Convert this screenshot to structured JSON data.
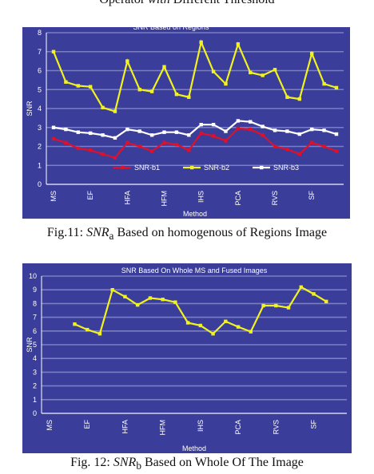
{
  "top_caption": {
    "pre": "Operator ",
    "italic": "with",
    "post": " Different Threshold"
  },
  "captions": {
    "fig11": {
      "pre": "Fig.11: ",
      "sym": "SNR",
      "sub": "a",
      "post": " Based on homogenous of Regions Image"
    },
    "fig12": {
      "pre": "Fig. 12: ",
      "sym": "SNR",
      "sub": "b",
      "post": " Based on Whole Of The  Image"
    }
  },
  "colors": {
    "background": "#3a3d99",
    "grid": "#7a7fc4",
    "text": "#ffffff",
    "snr_b1": "#e0102a",
    "snr_b2": "#f2f21e",
    "snr_b3": "#ffffff"
  },
  "chart_data": [
    {
      "type": "line",
      "title": "SNR Based on Regions",
      "xlabel": "Method",
      "ylabel": "SNR",
      "ylim": [
        0,
        8
      ],
      "yticks": [
        "0",
        "1",
        "2",
        "3",
        "4",
        "5",
        "6",
        "7",
        "8"
      ],
      "grid": true,
      "legend": "bottom",
      "x_labels": [
        "MS",
        "EF",
        "HFA",
        "HFM",
        "IHS",
        "PCA",
        "RVS",
        "SF"
      ],
      "x_label_positions": [
        0,
        3,
        6,
        9,
        12,
        15,
        18,
        21
      ],
      "n_points": 24,
      "series": [
        {
          "name": "SNR-b1",
          "color_key": "snr_b1",
          "values": [
            2.4,
            2.2,
            1.9,
            1.8,
            1.6,
            1.4,
            2.2,
            2.0,
            1.75,
            2.2,
            2.1,
            1.8,
            2.7,
            2.55,
            2.3,
            2.95,
            2.9,
            2.6,
            2.0,
            1.85,
            1.6,
            2.2,
            2.0,
            1.75
          ]
        },
        {
          "name": "SNR-b2",
          "color_key": "snr_b2",
          "values": [
            7.0,
            5.4,
            5.2,
            5.15,
            4.05,
            3.85,
            6.5,
            5.0,
            4.9,
            6.2,
            4.75,
            4.6,
            7.5,
            5.95,
            5.3,
            7.4,
            5.9,
            5.75,
            6.05,
            4.6,
            4.5,
            6.9,
            5.3,
            5.1
          ]
        },
        {
          "name": "SNR-b3",
          "color_key": "snr_b3",
          "values": [
            3.0,
            2.9,
            2.75,
            2.7,
            2.6,
            2.45,
            2.9,
            2.8,
            2.6,
            2.75,
            2.75,
            2.6,
            3.15,
            3.15,
            2.8,
            3.35,
            3.3,
            3.05,
            2.85,
            2.8,
            2.65,
            2.9,
            2.85,
            2.65
          ]
        }
      ]
    },
    {
      "type": "line",
      "title": "SNR Based On Whole  MS and Fused Images",
      "xlabel": "Method",
      "ylabel": "SNR",
      "ylim": [
        0,
        10
      ],
      "yticks": [
        "0",
        "1",
        "2",
        "3",
        "4",
        "5",
        "6",
        "7",
        "8",
        "9",
        "10"
      ],
      "grid": true,
      "x_labels": [
        "MS",
        "EF",
        "HFA",
        "HFM",
        "IHS",
        "PCA",
        "RVS",
        "SF"
      ],
      "x_label_positions": [
        0,
        3,
        6,
        9,
        12,
        15,
        18,
        21
      ],
      "n_points": 24,
      "series": [
        {
          "color_key": "snr_b2",
          "values": [
            null,
            null,
            6.5,
            6.1,
            5.8,
            9.0,
            8.5,
            7.9,
            8.4,
            8.3,
            8.1,
            6.6,
            6.4,
            5.8,
            6.7,
            6.3,
            5.95,
            7.85,
            7.85,
            7.7,
            9.2,
            8.7,
            8.15,
            null
          ]
        }
      ]
    }
  ]
}
